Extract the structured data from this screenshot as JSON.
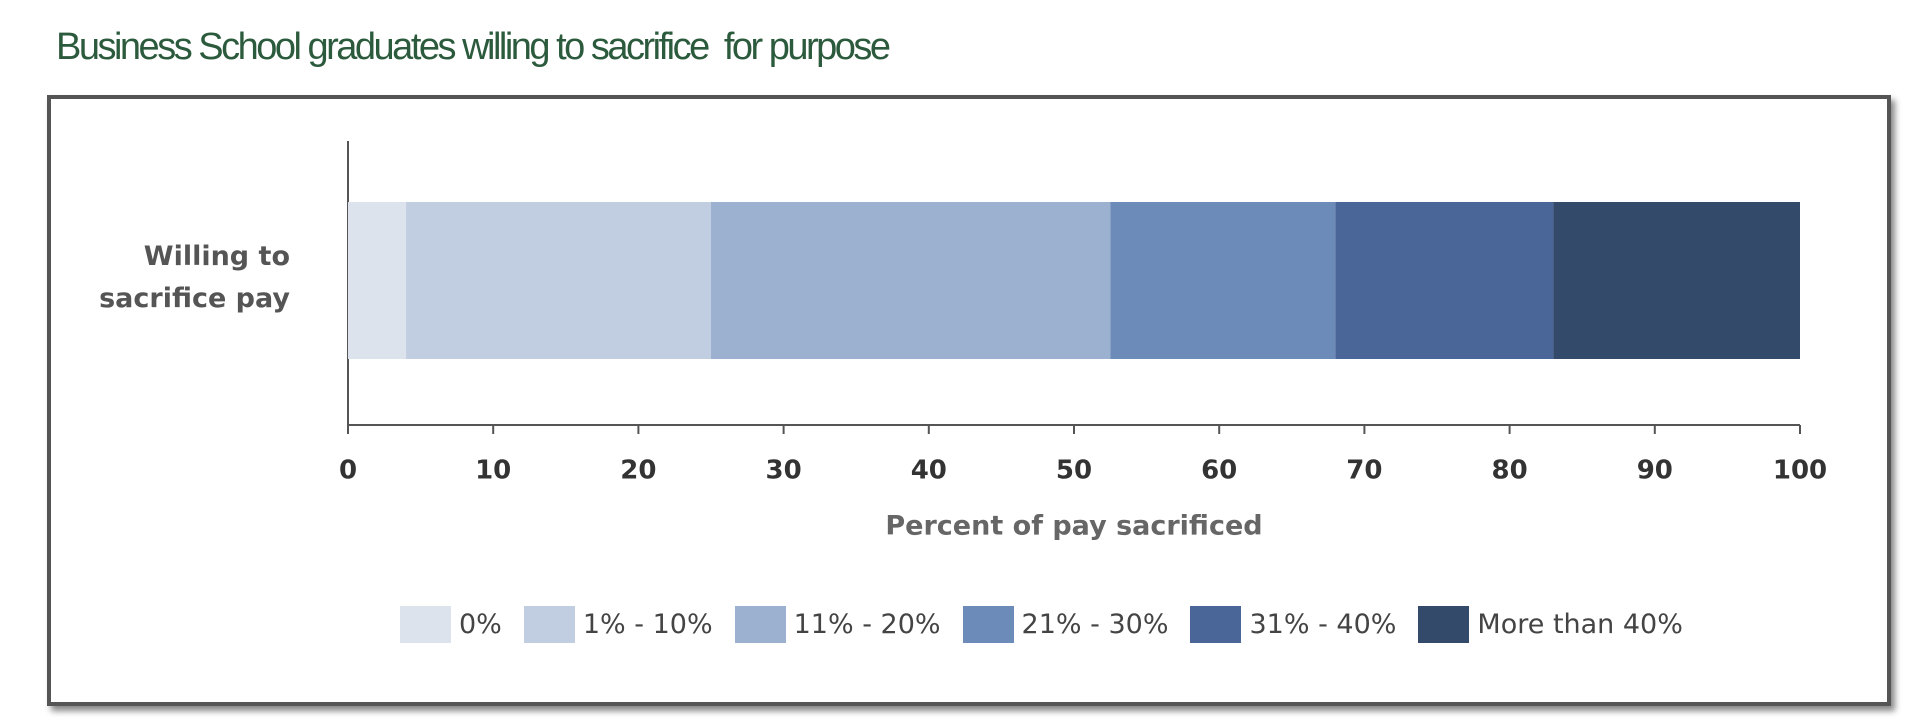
{
  "chart_data": {
    "type": "stacked-bar-horizontal",
    "title": "Business School graduates willing to sacrifice  for purpose",
    "categories": [
      "Willing to sacrifice pay"
    ],
    "series": [
      {
        "name": "0%",
        "color": "#dde3ec",
        "values": [
          4
        ]
      },
      {
        "name": "1% - 10%",
        "color": "#c1cde0",
        "values": [
          21
        ]
      },
      {
        "name": "11% - 20%",
        "color": "#9cb0cf",
        "values": [
          27.5
        ]
      },
      {
        "name": "21% - 30%",
        "color": "#6c8bb8",
        "values": [
          15.5
        ]
      },
      {
        "name": "31% - 40%",
        "color": "#4a6698",
        "values": [
          15
        ]
      },
      {
        "name": "More than 40%",
        "color": "#334a6b",
        "values": [
          17
        ]
      }
    ],
    "x_label": "Percent of pay sacrificed",
    "xlim": [
      0,
      100
    ],
    "xticks": [
      0,
      10,
      20,
      30,
      40,
      50,
      60,
      70,
      80,
      90,
      100
    ],
    "legend": "bottom"
  }
}
